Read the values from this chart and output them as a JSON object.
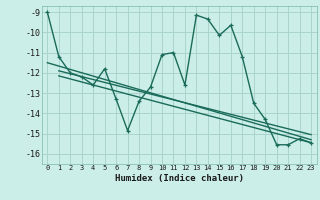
{
  "xlabel": "Humidex (Indice chaleur)",
  "bg_color": "#cceee8",
  "grid_color": "#aad4cc",
  "line_color": "#1a6b5a",
  "xlim": [
    -0.5,
    23.5
  ],
  "ylim": [
    -16.5,
    -8.7
  ],
  "xticks": [
    0,
    1,
    2,
    3,
    4,
    5,
    6,
    7,
    8,
    9,
    10,
    11,
    12,
    13,
    14,
    15,
    16,
    17,
    18,
    19,
    20,
    21,
    22,
    23
  ],
  "yticks": [
    -9,
    -10,
    -11,
    -12,
    -13,
    -14,
    -15,
    -16
  ],
  "main_line": [
    [
      0,
      -9.0
    ],
    [
      1,
      -11.2
    ],
    [
      2,
      -12.0
    ],
    [
      3,
      -12.2
    ],
    [
      4,
      -12.6
    ],
    [
      5,
      -11.8
    ],
    [
      6,
      -13.3
    ],
    [
      7,
      -14.85
    ],
    [
      8,
      -13.4
    ],
    [
      9,
      -12.7
    ],
    [
      10,
      -11.1
    ],
    [
      11,
      -11.0
    ],
    [
      12,
      -12.6
    ],
    [
      13,
      -9.15
    ],
    [
      14,
      -9.35
    ],
    [
      15,
      -10.15
    ],
    [
      16,
      -9.65
    ],
    [
      17,
      -11.2
    ],
    [
      18,
      -13.5
    ],
    [
      19,
      -14.3
    ],
    [
      20,
      -15.55
    ],
    [
      21,
      -15.55
    ],
    [
      22,
      -15.25
    ],
    [
      23,
      -15.45
    ]
  ],
  "trend_line1": [
    [
      0,
      -11.5
    ],
    [
      23,
      -15.3
    ]
  ],
  "trend_line2": [
    [
      1,
      -11.9
    ],
    [
      23,
      -15.05
    ]
  ],
  "trend_line3": [
    [
      1,
      -12.15
    ],
    [
      23,
      -15.45
    ]
  ]
}
